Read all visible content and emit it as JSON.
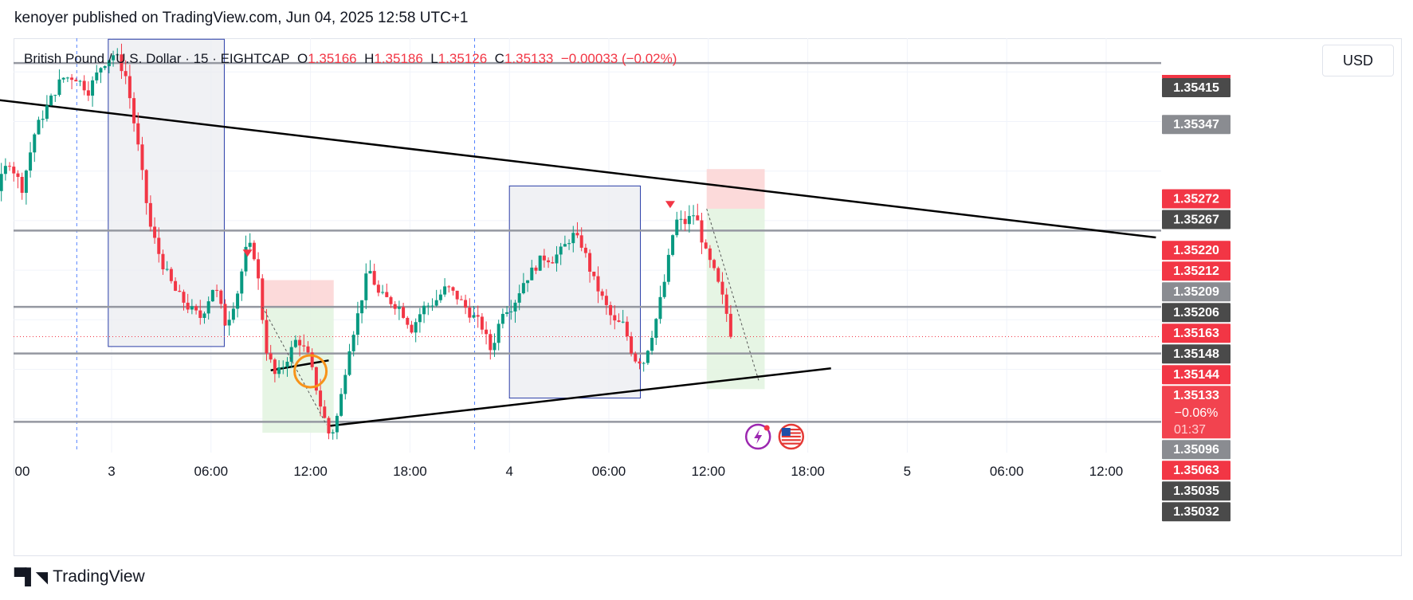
{
  "publisher_line": "kenoyer published on TradingView.com, Jun 04, 2025 12:58 UTC+1",
  "legend": {
    "symbol": "British Pound / U.S. Dollar · 15 · EIGHTCAP",
    "open_key": "O",
    "open": "1.35166",
    "high_key": "H",
    "high": "1.35186",
    "low_key": "L",
    "low": "1.35126",
    "close_key": "C",
    "close": "1.35133",
    "change": "−0.00033 (−0.02%)"
  },
  "currency": "USD",
  "footer_brand": "TradingView",
  "colors": {
    "up": "#089981",
    "down": "#f23645",
    "trendline": "#000000",
    "level_line": "#9598a1",
    "box_fill": "#e9ebf0",
    "box_border": "#2b3ea8",
    "target_fill": "#e3f4e1",
    "stop_fill": "#fcd4d4",
    "circle": "#f7931a"
  },
  "chart_data": {
    "type": "candlestick",
    "symbol": "British Pound / U.S. Dollar",
    "interval": "15",
    "ylim": [
      1.35016,
      1.35434
    ],
    "x_ticks": [
      {
        "t": -12,
        "label": "00"
      },
      {
        "t": 0,
        "label": "3"
      },
      {
        "t": 6,
        "label": "06:00"
      },
      {
        "t": 12,
        "label": "12:00"
      },
      {
        "t": 18,
        "label": "18:00"
      },
      {
        "t": 24,
        "label": "4"
      },
      {
        "t": 30,
        "label": "06:00"
      },
      {
        "t": 36,
        "label": "12:00"
      },
      {
        "t": 42,
        "label": "18:00"
      },
      {
        "t": 48,
        "label": "5"
      },
      {
        "t": 54,
        "label": "06:00"
      },
      {
        "t": 60,
        "label": "12:00"
      }
    ],
    "day_separators": [
      -2.1,
      21.9
    ],
    "candles_close_path": [
      [
        -12.9,
        1.35167
      ],
      [
        -12.2,
        1.35182
      ],
      [
        -11.5,
        1.35255
      ],
      [
        -10.8,
        1.35282
      ],
      [
        -10.1,
        1.35302
      ],
      [
        -9.4,
        1.35316
      ],
      [
        -8.6,
        1.35293
      ],
      [
        -7.8,
        1.35246
      ],
      [
        -7.0,
        1.35278
      ],
      [
        -6.2,
        1.35311
      ],
      [
        -5.4,
        1.35283
      ],
      [
        -4.6,
        1.35341
      ],
      [
        -3.8,
        1.35368
      ],
      [
        -3.0,
        1.35394
      ],
      [
        -2.2,
        1.35395
      ],
      [
        -1.4,
        1.35381
      ],
      [
        -0.6,
        1.35407
      ],
      [
        0.2,
        1.35419
      ],
      [
        0.9,
        1.35394
      ],
      [
        1.6,
        1.35324
      ],
      [
        2.3,
        1.35246
      ],
      [
        3.0,
        1.35209
      ],
      [
        3.8,
        1.3518
      ],
      [
        4.6,
        1.35163
      ],
      [
        5.4,
        1.35152
      ],
      [
        6.2,
        1.35186
      ],
      [
        6.9,
        1.35144
      ],
      [
        7.6,
        1.35178
      ],
      [
        8.2,
        1.35228
      ],
      [
        8.7,
        1.35212
      ],
      [
        9.3,
        1.35122
      ],
      [
        9.9,
        1.35092
      ],
      [
        10.5,
        1.35108
      ],
      [
        11.2,
        1.35132
      ],
      [
        11.9,
        1.35112
      ],
      [
        12.6,
        1.35064
      ],
      [
        13.2,
        1.3503
      ],
      [
        13.7,
        1.35058
      ],
      [
        14.3,
        1.3512
      ],
      [
        14.9,
        1.35158
      ],
      [
        15.5,
        1.35203
      ],
      [
        16.1,
        1.35176
      ],
      [
        16.7,
        1.3517
      ],
      [
        17.4,
        1.35162
      ],
      [
        18.1,
        1.35141
      ],
      [
        18.8,
        1.35162
      ],
      [
        19.5,
        1.35168
      ],
      [
        20.2,
        1.35183
      ],
      [
        20.9,
        1.35172
      ],
      [
        21.6,
        1.35157
      ],
      [
        22.3,
        1.35145
      ],
      [
        22.9,
        1.35118
      ],
      [
        23.6,
        1.3516
      ],
      [
        24.2,
        1.35164
      ],
      [
        24.8,
        1.35187
      ],
      [
        25.4,
        1.352
      ],
      [
        26.0,
        1.35213
      ],
      [
        26.6,
        1.35211
      ],
      [
        27.2,
        1.35221
      ],
      [
        27.8,
        1.35236
      ],
      [
        28.4,
        1.35225
      ],
      [
        29.0,
        1.35193
      ],
      [
        29.7,
        1.35168
      ],
      [
        30.3,
        1.35147
      ],
      [
        30.9,
        1.35145
      ],
      [
        31.5,
        1.35111
      ],
      [
        32.1,
        1.35108
      ],
      [
        32.8,
        1.35147
      ],
      [
        33.4,
        1.35192
      ],
      [
        34.0,
        1.3525
      ],
      [
        34.6,
        1.35248
      ],
      [
        35.2,
        1.35258
      ],
      [
        35.8,
        1.35219
      ],
      [
        36.4,
        1.35196
      ],
      [
        37.0,
        1.35164
      ],
      [
        37.4,
        1.35133
      ]
    ],
    "horizontal_levels": [
      1.35409,
      1.3524,
      1.35163,
      1.35116,
      1.35047
    ],
    "trendlines": [
      {
        "from": [
          -13,
          1.35384
        ],
        "to": [
          63,
          1.35233
        ]
      },
      {
        "from": [
          13.2,
          1.35043
        ],
        "to": [
          43.4,
          1.35101
        ]
      },
      {
        "from": [
          9.6,
          1.35099
        ],
        "to": [
          13.1,
          1.35109
        ]
      }
    ],
    "rectangles": [
      {
        "t0": -0.2,
        "t1": 6.8,
        "p0": 1.35433,
        "p1": 1.35123
      },
      {
        "t0": 24.0,
        "t1": 31.9,
        "p0": 1.35285,
        "p1": 1.35071
      }
    ],
    "positions": [
      {
        "type": "short",
        "t0": 9.1,
        "t1": 13.4,
        "entry": 1.35163,
        "stop": 1.3519,
        "target": 1.35036
      },
      {
        "type": "short",
        "t0": 35.9,
        "t1": 39.4,
        "entry": 1.35262,
        "stop": 1.35302,
        "target": 1.3508
      }
    ],
    "signal_markers": [
      {
        "t": 8.2,
        "price": 1.35216
      },
      {
        "t": 33.7,
        "price": 1.35265
      }
    ],
    "highlight_circle": {
      "t": 12.0,
      "price": 1.35098
    },
    "last_price": 1.35133,
    "price_labels": [
      {
        "price": 1.35415,
        "text": "1.35415",
        "style": "dark"
      },
      {
        "price": 1.35347,
        "text": "1.35347",
        "style": "grey"
      },
      {
        "price": 1.35272,
        "text": "1.35272",
        "style": "red"
      },
      {
        "price": 1.35267,
        "text": "1.35267",
        "style": "dark"
      },
      {
        "price": 1.3522,
        "text": "1.35220",
        "style": "red"
      },
      {
        "price": 1.35212,
        "text": "1.35212",
        "style": "red"
      },
      {
        "price": 1.35209,
        "text": "1.35209",
        "style": "grey"
      },
      {
        "price": 1.35206,
        "text": "1.35206",
        "style": "dark"
      },
      {
        "price": 1.35163,
        "text": "1.35163",
        "style": "red"
      },
      {
        "price": 1.35148,
        "text": "1.35148",
        "style": "dark"
      },
      {
        "price": 1.35144,
        "text": "1.35144",
        "style": "red"
      },
      {
        "price": 1.35133,
        "text": "1.35133",
        "style": "current",
        "sub1": "−0.06%",
        "sub2": "01:37"
      },
      {
        "price": 1.35096,
        "text": "1.35096",
        "style": "grey"
      },
      {
        "price": 1.35063,
        "text": "1.35063",
        "style": "red"
      },
      {
        "price": 1.35035,
        "text": "1.35035",
        "style": "dark"
      },
      {
        "price": 1.35032,
        "text": "1.35032",
        "style": "dark"
      }
    ],
    "event_icons": [
      {
        "t": 39.0,
        "name": "flash-event-icon"
      },
      {
        "t": 41.0,
        "name": "us-flag-event-icon"
      }
    ]
  }
}
